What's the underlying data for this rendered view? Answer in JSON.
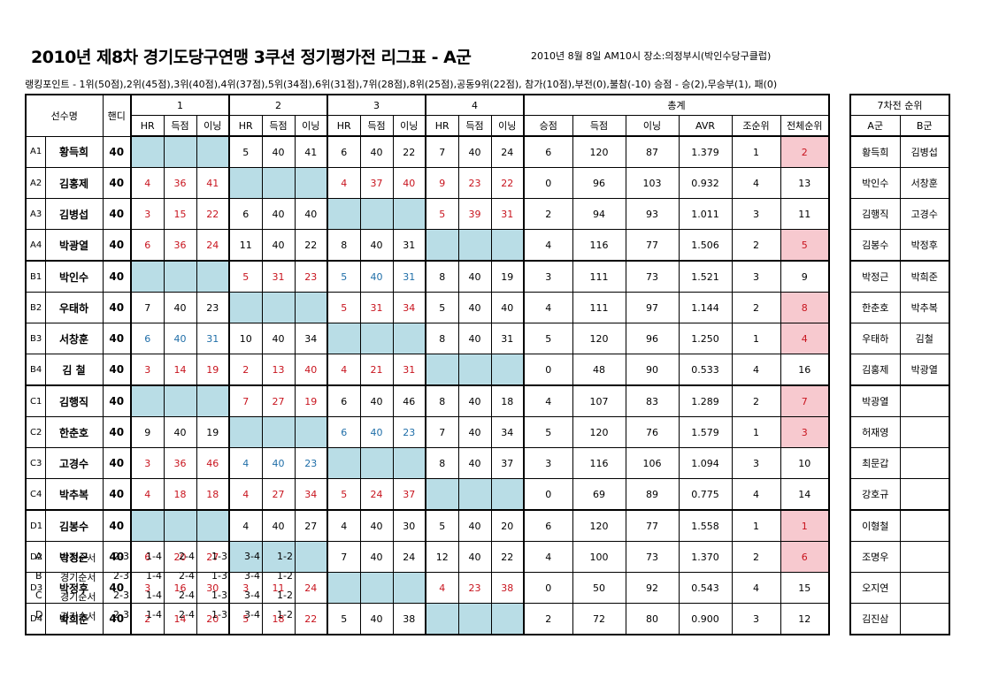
{
  "title": "2010년 제8차 경기도당구연맹 3쿠션 정기평가전 리그표 - A군",
  "info": "2010년 8월 8일 AM10시  장소:의정부시(박인수당구클럽)",
  "ranking_points": "랭킹포인트 - 1위(50점),2위(45점),3위(40점),4위(37점),5위(34점),6위(31점),7위(28점),8위(25점),공동9위(22점), 참가(10점),부전(0),불참(-10)  승점 - 승(2),무승부(1), 패(0)",
  "headers": {
    "player": "선수명",
    "handicap": "핸디",
    "rounds": [
      "1",
      "2",
      "3",
      "4"
    ],
    "total": "총계",
    "sub": [
      "HR",
      "득점",
      "이닝"
    ],
    "total_sub": [
      "승점",
      "득점",
      "이닝",
      "AVR",
      "조순위",
      "전체순위"
    ]
  },
  "players": [
    {
      "code": "A1",
      "name": "황득희",
      "handi": "40",
      "g": [
        null,
        [
          "5",
          "40",
          "41",
          "k"
        ],
        [
          "6",
          "40",
          "22",
          "k"
        ],
        [
          "7",
          "40",
          "24",
          "k"
        ]
      ],
      "pts": "6",
      "score": "120",
      "inn": "87",
      "avr": "1.379",
      "grp": "1",
      "overall": "2",
      "pink": true
    },
    {
      "code": "A2",
      "name": "김홍제",
      "handi": "40",
      "g": [
        [
          "4",
          "36",
          "41",
          "r"
        ],
        null,
        [
          "4",
          "37",
          "40",
          "r"
        ],
        [
          "9",
          "23",
          "22",
          "r"
        ]
      ],
      "pts": "0",
      "score": "96",
      "inn": "103",
      "avr": "0.932",
      "grp": "4",
      "overall": "13",
      "pink": false
    },
    {
      "code": "A3",
      "name": "김병섭",
      "handi": "40",
      "g": [
        [
          "3",
          "15",
          "22",
          "r"
        ],
        [
          "6",
          "40",
          "40",
          "k"
        ],
        null,
        [
          "5",
          "39",
          "31",
          "r"
        ]
      ],
      "pts": "2",
      "score": "94",
      "inn": "93",
      "avr": "1.011",
      "grp": "3",
      "overall": "11",
      "pink": false
    },
    {
      "code": "A4",
      "name": "박광열",
      "handi": "40",
      "g": [
        [
          "6",
          "36",
          "24",
          "r"
        ],
        [
          "11",
          "40",
          "22",
          "k"
        ],
        [
          "8",
          "40",
          "31",
          "k"
        ],
        null
      ],
      "pts": "4",
      "score": "116",
      "inn": "77",
      "avr": "1.506",
      "grp": "2",
      "overall": "5",
      "pink": true
    },
    {
      "code": "B1",
      "name": "박인수",
      "handi": "40",
      "g": [
        null,
        [
          "5",
          "31",
          "23",
          "r"
        ],
        [
          "5",
          "40",
          "31",
          "b"
        ],
        [
          "8",
          "40",
          "19",
          "k"
        ]
      ],
      "pts": "3",
      "score": "111",
      "inn": "73",
      "avr": "1.521",
      "grp": "3",
      "overall": "9",
      "pink": false
    },
    {
      "code": "B2",
      "name": "우태하",
      "handi": "40",
      "g": [
        [
          "7",
          "40",
          "23",
          "k"
        ],
        null,
        [
          "5",
          "31",
          "34",
          "r"
        ],
        [
          "5",
          "40",
          "40",
          "k"
        ]
      ],
      "pts": "4",
      "score": "111",
      "inn": "97",
      "avr": "1.144",
      "grp": "2",
      "overall": "8",
      "pink": true
    },
    {
      "code": "B3",
      "name": "서창훈",
      "handi": "40",
      "g": [
        [
          "6",
          "40",
          "31",
          "b"
        ],
        [
          "10",
          "40",
          "34",
          "k"
        ],
        null,
        [
          "8",
          "40",
          "31",
          "k"
        ]
      ],
      "pts": "5",
      "score": "120",
      "inn": "96",
      "avr": "1.250",
      "grp": "1",
      "overall": "4",
      "pink": true
    },
    {
      "code": "B4",
      "name": "김 철",
      "handi": "40",
      "g": [
        [
          "3",
          "14",
          "19",
          "r"
        ],
        [
          "2",
          "13",
          "40",
          "r"
        ],
        [
          "4",
          "21",
          "31",
          "r"
        ],
        null
      ],
      "pts": "0",
      "score": "48",
      "inn": "90",
      "avr": "0.533",
      "grp": "4",
      "overall": "16",
      "pink": false
    },
    {
      "code": "C1",
      "name": "김행직",
      "handi": "40",
      "g": [
        null,
        [
          "7",
          "27",
          "19",
          "r"
        ],
        [
          "6",
          "40",
          "46",
          "k"
        ],
        [
          "8",
          "40",
          "18",
          "k"
        ]
      ],
      "pts": "4",
      "score": "107",
      "inn": "83",
      "avr": "1.289",
      "grp": "2",
      "overall": "7",
      "pink": true
    },
    {
      "code": "C2",
      "name": "한춘호",
      "handi": "40",
      "g": [
        [
          "9",
          "40",
          "19",
          "k"
        ],
        null,
        [
          "6",
          "40",
          "23",
          "b"
        ],
        [
          "7",
          "40",
          "34",
          "k"
        ]
      ],
      "pts": "5",
      "score": "120",
      "inn": "76",
      "avr": "1.579",
      "grp": "1",
      "overall": "3",
      "pink": true
    },
    {
      "code": "C3",
      "name": "고경수",
      "handi": "40",
      "g": [
        [
          "3",
          "36",
          "46",
          "r"
        ],
        [
          "4",
          "40",
          "23",
          "b"
        ],
        null,
        [
          "8",
          "40",
          "37",
          "k"
        ]
      ],
      "pts": "3",
      "score": "116",
      "inn": "106",
      "avr": "1.094",
      "grp": "3",
      "overall": "10",
      "pink": false
    },
    {
      "code": "C4",
      "name": "박추복",
      "handi": "40",
      "g": [
        [
          "4",
          "18",
          "18",
          "r"
        ],
        [
          "4",
          "27",
          "34",
          "r"
        ],
        [
          "5",
          "24",
          "37",
          "r"
        ],
        null
      ],
      "pts": "0",
      "score": "69",
      "inn": "89",
      "avr": "0.775",
      "grp": "4",
      "overall": "14",
      "pink": false
    },
    {
      "code": "D1",
      "name": "김봉수",
      "handi": "40",
      "g": [
        null,
        [
          "4",
          "40",
          "27",
          "k"
        ],
        [
          "4",
          "40",
          "30",
          "k"
        ],
        [
          "5",
          "40",
          "20",
          "k"
        ]
      ],
      "pts": "6",
      "score": "120",
      "inn": "77",
      "avr": "1.558",
      "grp": "1",
      "overall": "1",
      "pink": true
    },
    {
      "code": "D2",
      "name": "박정근",
      "handi": "40",
      "g": [
        [
          "6",
          "20",
          "27",
          "r"
        ],
        null,
        [
          "7",
          "40",
          "24",
          "k"
        ],
        [
          "12",
          "40",
          "22",
          "k"
        ]
      ],
      "pts": "4",
      "score": "100",
      "inn": "73",
      "avr": "1.370",
      "grp": "2",
      "overall": "6",
      "pink": true
    },
    {
      "code": "D3",
      "name": "박정후",
      "handi": "40",
      "g": [
        [
          "3",
          "16",
          "30",
          "r"
        ],
        [
          "3",
          "11",
          "24",
          "r"
        ],
        null,
        [
          "4",
          "23",
          "38",
          "r"
        ]
      ],
      "pts": "0",
      "score": "50",
      "inn": "92",
      "avr": "0.543",
      "grp": "4",
      "overall": "15",
      "pink": false
    },
    {
      "code": "D4",
      "name": "박희준",
      "handi": "40",
      "g": [
        [
          "2",
          "14",
          "20",
          "r"
        ],
        [
          "5",
          "18",
          "22",
          "r"
        ],
        [
          "5",
          "40",
          "38",
          "k"
        ],
        null
      ],
      "pts": "2",
      "score": "72",
      "inn": "80",
      "avr": "0.900",
      "grp": "3",
      "overall": "12",
      "pink": false
    }
  ],
  "side": {
    "title": "7차전 순위",
    "a_label": "A군",
    "b_label": "B군",
    "rows": [
      [
        "황득희",
        "김병섭"
      ],
      [
        "박인수",
        "서창훈"
      ],
      [
        "김행직",
        "고경수"
      ],
      [
        "김봉수",
        "박정후"
      ],
      [
        "박정근",
        "박희준"
      ],
      [
        "한춘호",
        "박추복"
      ],
      [
        "우태하",
        "김철"
      ],
      [
        "김홍제",
        "박광열"
      ],
      [
        "박광열",
        ""
      ],
      [
        "허재영",
        ""
      ],
      [
        "최문갑",
        ""
      ],
      [
        "강호규",
        ""
      ],
      [
        "이형철",
        ""
      ],
      [
        "조명우",
        ""
      ],
      [
        "오지연",
        ""
      ],
      [
        "김진삼",
        ""
      ]
    ]
  },
  "order": {
    "label": "경기순서",
    "pairs": [
      "2-3",
      "1-4",
      "2-4",
      "1-3",
      "3-4",
      "1-2"
    ],
    "groups": [
      "A",
      "B",
      "C",
      "D"
    ]
  }
}
